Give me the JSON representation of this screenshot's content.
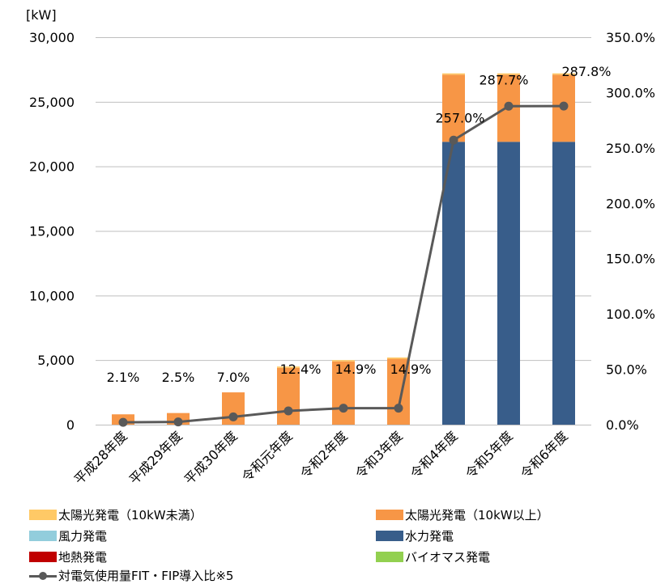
{
  "chart_data": {
    "type": "bar",
    "stacked": true,
    "categories": [
      "平成28年度",
      "平成29年度",
      "平成30年度",
      "令和元年度",
      "令和2年度",
      "令和3年度",
      "令和4年度",
      "令和5年度",
      "令和6年度"
    ],
    "series": [
      {
        "name": "太陽光発電（10kW未満）",
        "color": "#FFC966",
        "values": [
          0,
          0,
          0,
          100,
          100,
          100,
          100,
          100,
          100
        ]
      },
      {
        "name": "太陽光発電（10kW以上）",
        "color": "#F79646",
        "values": [
          800,
          900,
          2500,
          4400,
          4900,
          5100,
          5200,
          5200,
          5200
        ]
      },
      {
        "name": "風力発電",
        "color": "#92CDDC",
        "values": [
          0,
          0,
          0,
          0,
          0,
          0,
          0,
          0,
          0
        ]
      },
      {
        "name": "水力発電",
        "color": "#385D8A",
        "values": [
          0,
          0,
          0,
          0,
          0,
          0,
          21900,
          21900,
          21900
        ]
      },
      {
        "name": "地熱発電",
        "color": "#C00000",
        "values": [
          0,
          0,
          0,
          0,
          0,
          0,
          0,
          0,
          0
        ]
      },
      {
        "name": "バイオマス発電",
        "color": "#92D050",
        "values": [
          0,
          0,
          0,
          0,
          0,
          0,
          0,
          0,
          0
        ]
      }
    ],
    "line": {
      "name": "対電気使用量FIT・FIP導入比※5",
      "color": "#595959",
      "values": [
        2.1,
        2.5,
        7.0,
        12.4,
        14.9,
        14.9,
        257.0,
        287.7,
        287.8
      ],
      "labels": [
        "2.1%",
        "2.5%",
        "7.0%",
        "12.4%",
        "14.9%",
        "14.9%",
        "257.0%",
        "287.7%",
        "287.8%"
      ]
    },
    "y_unit": "[kW]",
    "ylim": [
      0,
      30000
    ],
    "y_ticks": [
      "0",
      "5,000",
      "10,000",
      "15,000",
      "20,000",
      "25,000",
      "30,000"
    ],
    "y2lim": [
      0,
      350
    ],
    "y2_ticks": [
      "0.0%",
      "50.0%",
      "100.0%",
      "150.0%",
      "200.0%",
      "250.0%",
      "300.0%",
      "350.0%"
    ],
    "grid": true,
    "legend_position": "bottom"
  }
}
